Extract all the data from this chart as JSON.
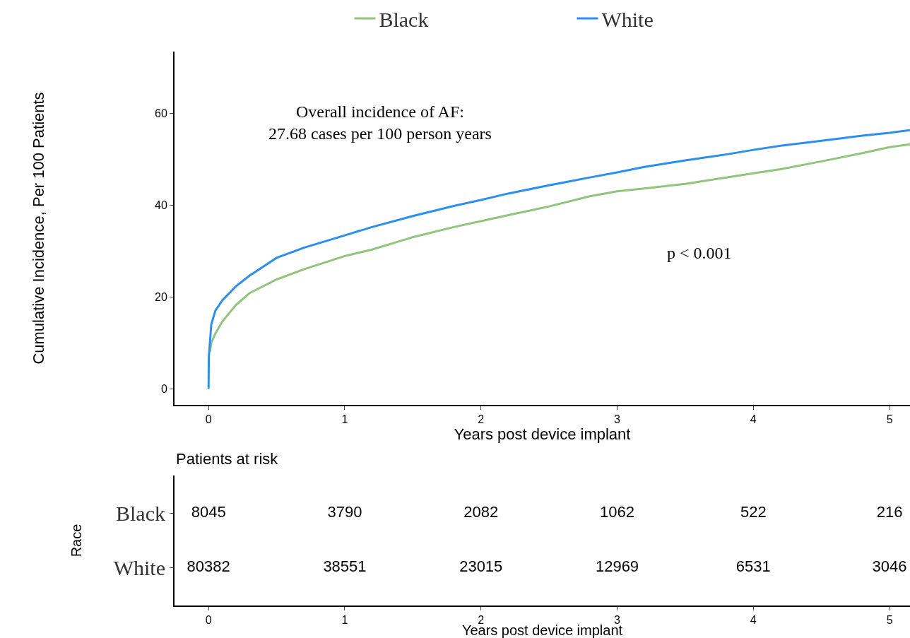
{
  "chart_data": [
    {
      "type": "line",
      "xlabel": "Years post device implant",
      "ylabel": "Cumulative Incidence, Per 100 Patients",
      "xlim": [
        -0.25,
        5.15
      ],
      "xticks": [
        0,
        1,
        2,
        3,
        4,
        5
      ],
      "ylim": [
        -3.5,
        73.4
      ],
      "yticks": [
        0,
        20,
        40,
        60
      ],
      "grid": false,
      "legend": "top",
      "marker": "none",
      "line_style": "solid",
      "annotations": [
        "Overall incidence of AF:\n27.68 cases per 100 person years",
        "p < 0.001"
      ],
      "series": [
        {
          "name": "Black",
          "color": "#93c47d",
          "x": [
            0.01,
            0.02,
            0.05,
            0.1,
            0.2,
            0.3,
            0.5,
            0.7,
            1,
            1.2,
            1.5,
            1.8,
            2,
            2.2,
            2.5,
            2.8,
            3,
            3.2,
            3.5,
            3.8,
            4,
            4.2,
            4.5,
            4.8,
            5,
            5.15
          ],
          "values": [
            8,
            10,
            12,
            14.6,
            18.2,
            20.8,
            23.8,
            26,
            28.9,
            30.3,
            33,
            35.2,
            36.5,
            37.8,
            39.7,
            41.9,
            43,
            43.6,
            44.6,
            46,
            46.9,
            47.8,
            49.5,
            51.3,
            52.6,
            53.2
          ]
        },
        {
          "name": "White",
          "color": "#2b8ff0",
          "x": [
            0,
            0.002,
            0.01,
            0.02,
            0.05,
            0.1,
            0.2,
            0.3,
            0.5,
            0.7,
            1,
            1.2,
            1.5,
            1.8,
            2,
            2.2,
            2.5,
            2.8,
            3,
            3.2,
            3.5,
            3.8,
            4,
            4.2,
            4.5,
            4.8,
            5,
            5.15
          ],
          "values": [
            0,
            7,
            10,
            14,
            17,
            19.2,
            22.3,
            24.6,
            28.5,
            30.7,
            33.4,
            35.2,
            37.6,
            39.8,
            41.1,
            42.5,
            44.3,
            46,
            47.1,
            48.3,
            49.7,
            51,
            52,
            52.9,
            54,
            55.1,
            55.7,
            56.3
          ]
        }
      ]
    },
    {
      "type": "heatmap",
      "title": "Patients at risk",
      "xlabel": "Years post device implant",
      "ylabel": "Race",
      "categories": [
        "0",
        "1",
        "2",
        "3",
        "4",
        "5"
      ],
      "y_categories": [
        "Black",
        "White"
      ],
      "data_labels": true,
      "cells": [
        [
          8045,
          3790,
          2082,
          1062,
          522,
          216
        ],
        [
          80382,
          38551,
          23015,
          12969,
          6531,
          3046
        ]
      ]
    }
  ]
}
